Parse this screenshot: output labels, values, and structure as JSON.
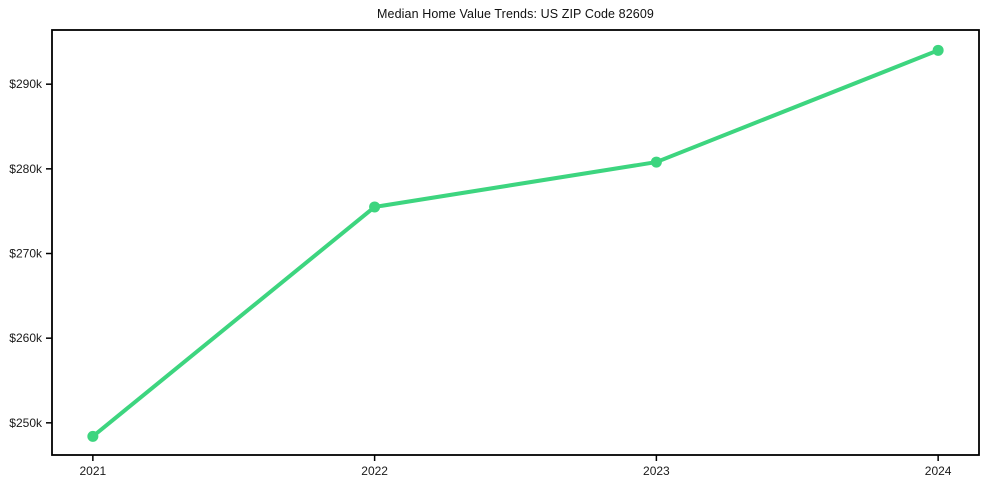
{
  "figure": {
    "background_color": "#ffffff",
    "axis_color": "#000000",
    "text_color": "#1a1a1a"
  },
  "chart_data": {
    "type": "line",
    "title": "Median Home Value Trends: US ZIP Code 82609",
    "xlabel": "",
    "ylabel": "",
    "x": [
      2021,
      2022,
      2023,
      2024
    ],
    "x_tick_labels": [
      "2021",
      "2022",
      "2023",
      "2024"
    ],
    "series": [
      {
        "name": "median-home-value",
        "values": [
          248400,
          275500,
          280800,
          294000
        ],
        "color": "#3dd57f",
        "line_width": 4,
        "marker": "circle",
        "marker_radius": 5.5
      }
    ],
    "yticks": {
      "values": [
        250000,
        260000,
        270000,
        280000,
        290000
      ],
      "labels": [
        "$250k",
        "$260k",
        "$270k",
        "$280k",
        "$290k"
      ]
    },
    "ylim": [
      246200,
      296400
    ],
    "xlim": [
      2020.855,
      2024.145
    ],
    "grid": false,
    "legend": "none"
  }
}
